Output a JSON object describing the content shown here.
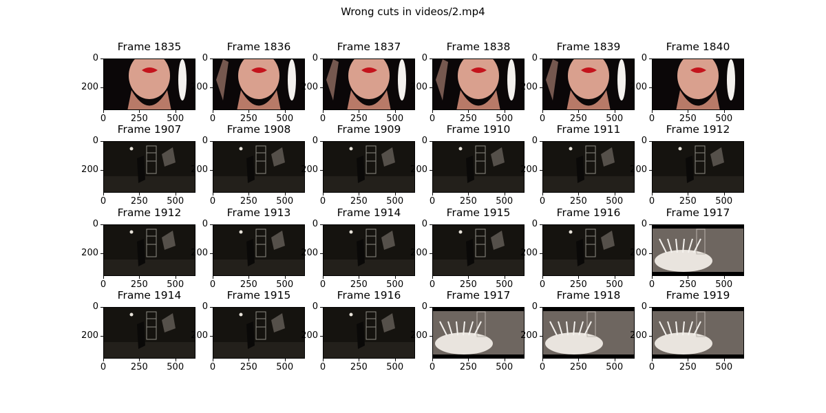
{
  "figure": {
    "suptitle": "Wrong cuts in videos/2.mp4"
  },
  "chart_data": {
    "type": "image_grid",
    "title": "Wrong cuts in videos/2.mp4",
    "rows": 4,
    "cols": 6,
    "image_extent": {
      "x": [
        0,
        640
      ],
      "y": [
        360,
        0
      ]
    },
    "xticks": [
      0,
      250,
      500
    ],
    "yticks": [
      0,
      200
    ],
    "panels": [
      {
        "title": "Frame 1835",
        "scene": "face"
      },
      {
        "title": "Frame 1836",
        "scene": "face"
      },
      {
        "title": "Frame 1837",
        "scene": "face"
      },
      {
        "title": "Frame 1838",
        "scene": "face"
      },
      {
        "title": "Frame 1839",
        "scene": "face"
      },
      {
        "title": "Frame 1840",
        "scene": "face"
      },
      {
        "title": "Frame 1907",
        "scene": "dark"
      },
      {
        "title": "Frame 1908",
        "scene": "dark"
      },
      {
        "title": "Frame 1909",
        "scene": "dark"
      },
      {
        "title": "Frame 1910",
        "scene": "dark"
      },
      {
        "title": "Frame 1911",
        "scene": "dark"
      },
      {
        "title": "Frame 1912",
        "scene": "dark"
      },
      {
        "title": "Frame 1912",
        "scene": "dark"
      },
      {
        "title": "Frame 1913",
        "scene": "dark"
      },
      {
        "title": "Frame 1914",
        "scene": "dark"
      },
      {
        "title": "Frame 1915",
        "scene": "dark"
      },
      {
        "title": "Frame 1916",
        "scene": "dark"
      },
      {
        "title": "Frame 1917",
        "scene": "explosion"
      },
      {
        "title": "Frame 1914",
        "scene": "dark"
      },
      {
        "title": "Frame 1915",
        "scene": "dark"
      },
      {
        "title": "Frame 1916",
        "scene": "dark"
      },
      {
        "title": "Frame 1917",
        "scene": "explosion"
      },
      {
        "title": "Frame 1918",
        "scene": "explosion"
      },
      {
        "title": "Frame 1919",
        "scene": "explosion"
      }
    ]
  }
}
